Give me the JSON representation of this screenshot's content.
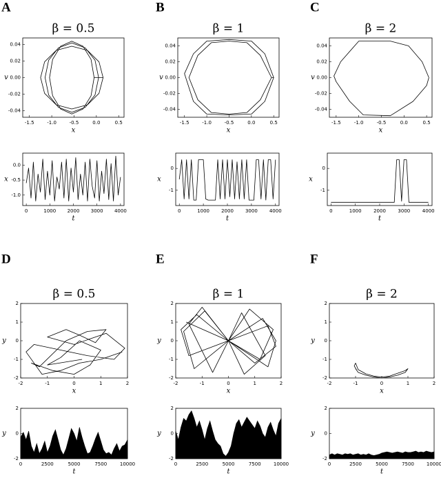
{
  "panel_labels": [
    "A",
    "B",
    "C",
    "D",
    "E",
    "F"
  ],
  "chart_data": [
    {
      "type": "line",
      "title": "β = 0.5",
      "x_label": "x",
      "y_label": "v",
      "x": [
        0.05,
        -0.03,
        -0.25,
        -0.55,
        -0.85,
        -1.07,
        -1.15,
        -1.07,
        -0.85,
        -0.55,
        -0.25,
        -0.03,
        0.05,
        0.15,
        0.06,
        -0.2,
        -0.55,
        -0.9,
        -1.16,
        -1.25,
        -1.16,
        -0.9,
        -0.55,
        -0.2,
        0.06,
        0.15,
        -0.05,
        -0.12,
        -0.3,
        -0.55,
        -0.8,
        -0.98,
        -1.05,
        -0.98,
        -0.8,
        -0.55,
        -0.3,
        -0.12,
        -0.05
      ],
      "series": [
        {
          "color": "#000000",
          "values": [
            0,
            0.021,
            0.036,
            0.042,
            0.036,
            0.021,
            0,
            -0.021,
            -0.036,
            -0.042,
            -0.036,
            -0.021,
            0,
            0,
            0.019,
            0.033,
            0.038,
            0.033,
            0.019,
            0,
            -0.019,
            -0.033,
            -0.038,
            -0.033,
            -0.019,
            0,
            0,
            0.022,
            0.038,
            0.044,
            0.038,
            0.022,
            0,
            -0.022,
            -0.038,
            -0.044,
            -0.038,
            -0.022,
            0
          ]
        }
      ],
      "xlim": [
        -1.65,
        0.62
      ],
      "ylim": [
        -0.048,
        0.048
      ],
      "xticks": [
        -1.5,
        {
          "value": -1,
          "label": "-1.0"
        },
        -0.5,
        {
          "value": 0,
          "label": "0.0"
        },
        0.5
      ],
      "yticks": [
        -0.04,
        -0.02,
        {
          "value": 0,
          "label": "0.00"
        },
        0.02,
        0.04
      ]
    },
    {
      "type": "line",
      "title": "β = 1",
      "x_label": "x",
      "y_label": "v",
      "x": [
        0.5,
        0.3,
        0.0,
        -0.5,
        -1.0,
        -1.3,
        -1.5,
        -1.3,
        -1.0,
        -0.5,
        0.0,
        0.3,
        0.5,
        0.45,
        0.2,
        -0.1,
        -0.5,
        -0.9,
        -1.2,
        -1.4,
        -1.2,
        -0.9,
        -0.5,
        -0.1,
        0.2,
        0.45
      ],
      "series": [
        {
          "color": "#000000",
          "values": [
            0,
            0.03,
            0.046,
            0.048,
            0.046,
            0.03,
            0.005,
            -0.03,
            -0.046,
            -0.047,
            -0.046,
            -0.03,
            0,
            0,
            0.028,
            0.044,
            0.046,
            0.044,
            0.028,
            0,
            -0.028,
            -0.044,
            -0.046,
            -0.044,
            -0.028,
            0
          ]
        }
      ],
      "xlim": [
        -1.65,
        0.62
      ],
      "ylim": [
        -0.05,
        0.05
      ],
      "xticks": [
        -1.5,
        {
          "value": -1,
          "label": "-1.0"
        },
        -0.5,
        {
          "value": 0,
          "label": "0.0"
        },
        0.5
      ],
      "yticks": [
        -0.04,
        -0.02,
        {
          "value": 0,
          "label": "0.00"
        },
        0.02,
        0.04
      ]
    },
    {
      "type": "line",
      "title": "β = 2",
      "x_label": "x",
      "y_label": "v",
      "x": [
        0.55,
        0.4,
        0.1,
        -0.3,
        -1.0,
        -1.4,
        -1.55,
        -1.5,
        -1.2,
        -0.9,
        -0.3,
        0.2,
        0.5,
        0.55
      ],
      "series": [
        {
          "color": "#000000",
          "values": [
            0,
            0.02,
            0.04,
            0.046,
            0.046,
            0.02,
            0.002,
            -0.005,
            -0.03,
            -0.047,
            -0.048,
            -0.03,
            -0.01,
            0
          ]
        }
      ],
      "xlim": [
        -1.65,
        0.62
      ],
      "ylim": [
        -0.05,
        0.05
      ],
      "xticks": [
        -1.5,
        {
          "value": -1,
          "label": "-1.0"
        },
        -0.5,
        {
          "value": 0,
          "label": "0.0"
        },
        0.5
      ],
      "yticks": [
        -0.04,
        -0.02,
        {
          "value": 0,
          "label": "0.00"
        },
        0.02,
        0.04
      ]
    },
    {
      "type": "line",
      "x_label": "t",
      "y_label": "x",
      "x": [
        0,
        100,
        200,
        300,
        400,
        500,
        600,
        700,
        800,
        900,
        1000,
        1100,
        1200,
        1300,
        1400,
        1500,
        1600,
        1700,
        1800,
        1900,
        2000,
        2100,
        2200,
        2300,
        2400,
        2500,
        2600,
        2700,
        2800,
        2900,
        3000,
        3100,
        3200,
        3300,
        3400,
        3500,
        3600,
        3700,
        3800,
        3900,
        4000
      ],
      "series": [
        {
          "color": "#000000",
          "values": [
            -0.6,
            -0.1,
            -1.1,
            0.1,
            -1.2,
            -0.3,
            -0.9,
            0.2,
            -1.15,
            -0.2,
            -1.0,
            0.15,
            -1.2,
            -0.4,
            -0.8,
            0.1,
            -1.1,
            0.2,
            -1.2,
            -0.1,
            -0.9,
            0.25,
            -1.15,
            -0.3,
            -1.0,
            0.1,
            -1.2,
            0.2,
            -0.7,
            -1.1,
            0.15,
            -1.2,
            -0.2,
            -0.95,
            0.2,
            -1.15,
            0.05,
            -1.2,
            0.3,
            -1.0,
            -0.4
          ]
        }
      ],
      "xlim": [
        -150,
        4150
      ],
      "ylim": [
        -1.35,
        0.4
      ],
      "xticks": [
        0,
        1000,
        2000,
        3000,
        4000
      ],
      "yticks": [
        {
          "value": -1,
          "label": "-1.0"
        },
        -0.5,
        {
          "value": 0,
          "label": "0.0"
        }
      ]
    },
    {
      "type": "line",
      "x_label": "t",
      "y_label": "x",
      "x": [
        0,
        100,
        200,
        300,
        400,
        500,
        600,
        700,
        800,
        900,
        1000,
        1100,
        1200,
        1300,
        1400,
        1500,
        1600,
        1700,
        1800,
        1900,
        2000,
        2100,
        2200,
        2300,
        2400,
        2500,
        2600,
        2700,
        2800,
        2900,
        3000,
        3100,
        3200,
        3300,
        3400,
        3500,
        3600,
        3700,
        3800,
        3900,
        4000
      ],
      "series": [
        {
          "color": "#000000",
          "values": [
            -0.5,
            0.4,
            -1.4,
            0.4,
            -1.4,
            0.4,
            -1.45,
            -1.45,
            0.4,
            0.4,
            0.4,
            -1.4,
            -1.45,
            -1.45,
            -1.45,
            -1.45,
            0.4,
            -1.4,
            0.4,
            -1.4,
            0.4,
            -1.3,
            0.4,
            -1.4,
            0.3,
            -1.4,
            0.4,
            -1.4,
            0.4,
            -1.45,
            -1.45,
            -1.45,
            0.4,
            0.4,
            -1.4,
            0.4,
            -1.45,
            0.4,
            0.4,
            -1.4,
            0.4
          ]
        }
      ],
      "xlim": [
        -150,
        4150
      ],
      "ylim": [
        -1.7,
        0.7
      ],
      "xticks": [
        0,
        1000,
        2000,
        3000,
        4000
      ],
      "yticks": [
        -1,
        0
      ]
    },
    {
      "type": "line",
      "x_label": "t",
      "y_label": "x",
      "x": [
        0,
        100,
        200,
        300,
        400,
        500,
        600,
        700,
        800,
        900,
        1000,
        1100,
        1200,
        1300,
        1400,
        1500,
        1600,
        1700,
        1800,
        1900,
        2000,
        2100,
        2200,
        2300,
        2400,
        2500,
        2600,
        2700,
        2800,
        2900,
        3000,
        3100,
        3200,
        3300,
        3400,
        3500,
        3600,
        3700,
        3800,
        3900,
        4000
      ],
      "series": [
        {
          "color": "#000000",
          "values": [
            -1.55,
            -1.55,
            -1.55,
            -1.55,
            -1.55,
            -1.55,
            -1.55,
            -1.55,
            -1.55,
            -1.55,
            -1.55,
            -1.55,
            -1.55,
            -1.55,
            -1.55,
            -1.55,
            -1.55,
            -1.55,
            -1.55,
            -1.55,
            -1.55,
            -1.55,
            -1.55,
            -1.55,
            -1.55,
            -1.55,
            -1.55,
            0.4,
            0.4,
            -1.5,
            0.4,
            0.4,
            -1.55,
            -1.55,
            -1.55,
            -1.55,
            -1.55,
            -1.55,
            -1.55,
            -1.55,
            -1.55
          ]
        }
      ],
      "xlim": [
        -150,
        4150
      ],
      "ylim": [
        -1.7,
        0.7
      ],
      "xticks": [
        0,
        1000,
        2000,
        3000,
        4000
      ],
      "yticks": [
        -1,
        0
      ]
    },
    {
      "type": "line",
      "title": "β = 0.5",
      "x_label": "x",
      "y_label": "y",
      "x": [
        1.8,
        1.0,
        0.2,
        -0.5,
        -1.2,
        -1.8,
        -1.5,
        -0.5,
        0.5,
        1.5,
        1.9,
        1.2,
        0.0,
        -1.0,
        -0.3,
        0.2,
        0.8,
        1.2,
        0.5,
        -0.3,
        -1.3,
        -1.6,
        -0.8,
        0.0,
        0.6,
        1.0,
        0.2,
        -0.5,
        -1.0,
        0.3
      ],
      "series": [
        {
          "color": "#000000",
          "values": [
            -0.6,
            -1.0,
            -1.2,
            -1.6,
            -1.8,
            -0.6,
            -0.2,
            -0.5,
            -0.8,
            -1.0,
            -0.4,
            0.4,
            -0.2,
            0.2,
            0.6,
            0.3,
            -0.1,
            0.6,
            0.5,
            0.0,
            -1.4,
            -1.2,
            -1.6,
            -1.8,
            -1.3,
            -0.5,
            0.0,
            -0.9,
            -1.3,
            -1.0
          ]
        }
      ],
      "xlim": [
        -2,
        2
      ],
      "ylim": [
        -2,
        2
      ],
      "xticks": [
        -2,
        -1,
        0,
        1,
        2
      ],
      "yticks": [
        -2,
        -1,
        0,
        1,
        2
      ]
    },
    {
      "type": "line",
      "title": "β = 1",
      "x_label": "x",
      "y_label": "y",
      "x": [
        0,
        1.5,
        1.8,
        1.0,
        0,
        -1.2,
        -1.8,
        -1.5,
        0,
        0.8,
        1.7,
        1.2,
        0,
        -0.9,
        -1.7,
        -1.3,
        0,
        1.3,
        1.8,
        1.5,
        0,
        -1.0,
        -1.5,
        -0.6,
        0,
        0.5,
        1.4,
        0.6,
        0,
        -1.6
      ],
      "series": [
        {
          "color": "#000000",
          "values": [
            0,
            0.8,
            -0.3,
            -1.2,
            0,
            1.4,
            0.6,
            -0.8,
            0,
            1.7,
            0.6,
            -1.0,
            0,
            1.6,
            0.5,
            -1.5,
            0,
            1.2,
            0.0,
            -1.4,
            0,
            1.8,
            0.9,
            -1.7,
            0,
            1.5,
            -0.8,
            -1.8,
            0,
            1.0
          ]
        }
      ],
      "xlim": [
        -2,
        2
      ],
      "ylim": [
        -2,
        2
      ],
      "xticks": [
        -2,
        -1,
        0,
        1,
        2
      ],
      "yticks": [
        -2,
        -1,
        0,
        1,
        2
      ]
    },
    {
      "type": "line",
      "title": "β = 2",
      "x_label": "x",
      "y_label": "y",
      "x": [
        -1.0,
        -0.9,
        -0.6,
        -0.3,
        0,
        0.3,
        0.6,
        0.9,
        1.0,
        0.9,
        0.6,
        0.3,
        0,
        -0.3,
        -0.6,
        -0.9,
        -1.0,
        -1.05,
        -0.95
      ],
      "series": [
        {
          "color": "#000000",
          "values": [
            -1.5,
            -1.7,
            -1.85,
            -1.95,
            -2.0,
            -1.95,
            -1.85,
            -1.7,
            -1.5,
            -1.6,
            -1.75,
            -1.9,
            -1.95,
            -1.9,
            -1.78,
            -1.55,
            -1.2,
            -1.35,
            -1.6
          ]
        }
      ],
      "xlim": [
        -2,
        2
      ],
      "ylim": [
        -2,
        2
      ],
      "xticks": [
        -2,
        -1,
        0,
        1,
        2
      ],
      "yticks": [
        -2,
        -1,
        0,
        1,
        2
      ]
    },
    {
      "type": "area",
      "x_label": "t",
      "y_label": "y",
      "x": [
        0,
        250,
        500,
        750,
        1000,
        1250,
        1500,
        1750,
        2000,
        2250,
        2500,
        2750,
        3000,
        3250,
        3500,
        3750,
        4000,
        4250,
        4500,
        4750,
        5000,
        5250,
        5500,
        5750,
        6000,
        6250,
        6500,
        6750,
        7000,
        7250,
        7500,
        7750,
        8000,
        8250,
        8500,
        8750,
        9000,
        9250,
        9500,
        9750,
        10000
      ],
      "series": [
        {
          "color": "#000000",
          "values": [
            -0.3,
            0.1,
            -0.5,
            0.2,
            -1.0,
            -1.5,
            -0.8,
            -1.6,
            -1.2,
            -0.6,
            -1.5,
            -1.0,
            -0.2,
            0.3,
            -0.5,
            -1.3,
            -1.7,
            -1.2,
            -0.4,
            0.4,
            0.0,
            -0.6,
            0.5,
            -0.3,
            -1.0,
            -1.6,
            -1.5,
            -1.0,
            -0.4,
            0.1,
            -0.6,
            -1.3,
            -1.6,
            -1.5,
            -1.7,
            -1.2,
            -0.8,
            -1.4,
            -1.0,
            -0.9,
            -0.5
          ]
        }
      ],
      "xlim": [
        0,
        10000
      ],
      "ylim": [
        -2,
        2
      ],
      "xticks": [
        0,
        2500,
        5000,
        7500,
        10000
      ],
      "yticks": [
        -2,
        0,
        2
      ]
    },
    {
      "type": "area",
      "x_label": "t",
      "y_label": "y",
      "x": [
        0,
        250,
        500,
        750,
        1000,
        1250,
        1500,
        1750,
        2000,
        2250,
        2500,
        2750,
        3000,
        3250,
        3500,
        3750,
        4000,
        4250,
        4500,
        4750,
        5000,
        5250,
        5500,
        5750,
        6000,
        6250,
        6500,
        6750,
        7000,
        7250,
        7500,
        7750,
        8000,
        8250,
        8500,
        8750,
        9000,
        9250,
        9500,
        9750,
        10000
      ],
      "series": [
        {
          "color": "#000000",
          "values": [
            0.2,
            -0.5,
            0.5,
            1.2,
            1.0,
            1.5,
            1.8,
            1.2,
            0.5,
            1.0,
            0.3,
            -0.5,
            0.4,
            1.0,
            0.2,
            -0.5,
            -0.8,
            -1.0,
            -1.6,
            -1.8,
            -1.5,
            -1.0,
            0.0,
            0.8,
            1.1,
            0.5,
            0.9,
            1.3,
            1.0,
            0.7,
            0.4,
            1.0,
            0.6,
            0.0,
            -0.3,
            0.5,
            0.9,
            0.3,
            -0.2,
            0.8,
            1.2
          ]
        }
      ],
      "xlim": [
        0,
        10000
      ],
      "ylim": [
        -2,
        2
      ],
      "xticks": [
        0,
        2500,
        5000,
        7500,
        10000
      ],
      "yticks": [
        -2,
        0,
        2
      ]
    },
    {
      "type": "area",
      "x_label": "t",
      "y_label": "y",
      "x": [
        0,
        250,
        500,
        750,
        1000,
        1250,
        1500,
        1750,
        2000,
        2250,
        2500,
        2750,
        3000,
        3250,
        3500,
        3750,
        4000,
        4250,
        4500,
        4750,
        5000,
        5250,
        5500,
        5750,
        6000,
        6250,
        6500,
        6750,
        7000,
        7250,
        7500,
        7750,
        8000,
        8250,
        8500,
        8750,
        9000,
        9250,
        9500,
        9750,
        10000
      ],
      "series": [
        {
          "color": "#000000",
          "values": [
            -1.7,
            -1.6,
            -1.7,
            -1.6,
            -1.65,
            -1.7,
            -1.6,
            -1.65,
            -1.6,
            -1.7,
            -1.65,
            -1.6,
            -1.7,
            -1.65,
            -1.7,
            -1.6,
            -1.7,
            -1.75,
            -1.7,
            -1.65,
            -1.55,
            -1.5,
            -1.45,
            -1.5,
            -1.55,
            -1.5,
            -1.45,
            -1.5,
            -1.55,
            -1.45,
            -1.5,
            -1.5,
            -1.45,
            -1.4,
            -1.5,
            -1.45,
            -1.5,
            -1.4,
            -1.45,
            -1.5,
            -1.45
          ]
        }
      ],
      "xlim": [
        0,
        10000
      ],
      "ylim": [
        -2,
        2
      ],
      "xticks": [
        0,
        2500,
        5000,
        7500,
        10000
      ],
      "yticks": [
        -2,
        0,
        2
      ]
    }
  ]
}
